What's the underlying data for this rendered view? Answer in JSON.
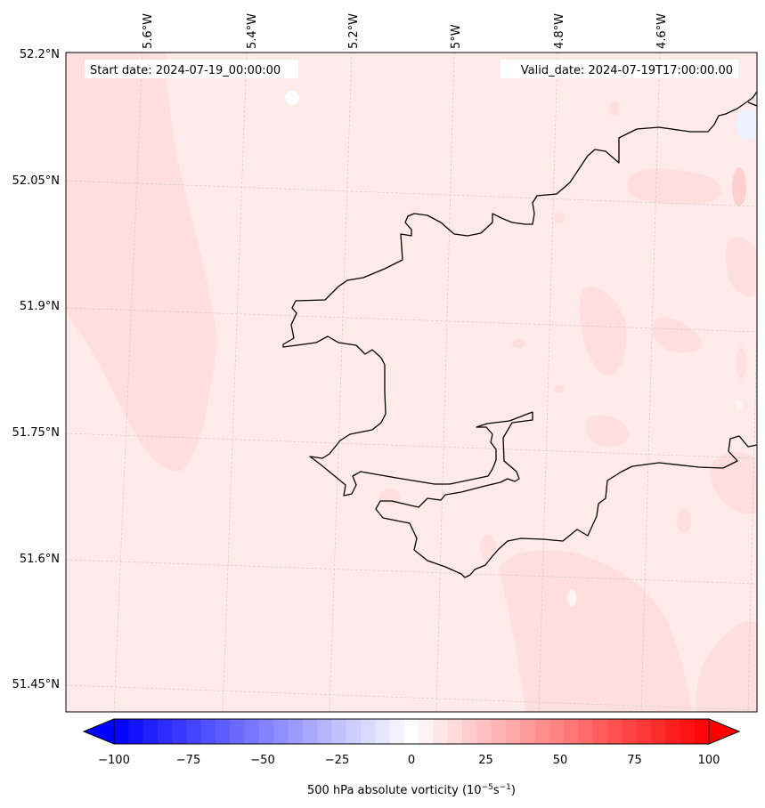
{
  "map": {
    "start_label": "Start date: 2024-07-19_00:00:00",
    "valid_label": "Valid_date: 2024-07-19T17:00:00.00",
    "lon_ticks": [
      "5.6°W",
      "5.4°W",
      "5.2°W",
      "5°W",
      "4.8°W",
      "4.6°W"
    ],
    "lat_ticks": [
      "52.2°N",
      "52.05°N",
      "51.9°N",
      "51.75°N",
      "51.6°N",
      "51.45°N"
    ],
    "field_base_color": "#ffeaea",
    "field_patch_color": "#ffdede",
    "field_light_color": "#fff4f4",
    "coastline_color": "#000000",
    "grid_color": "#c8c8c8"
  },
  "colorbar": {
    "ticks": [
      "−100",
      "−75",
      "−50",
      "−25",
      "0",
      "25",
      "50",
      "75",
      "100"
    ],
    "label": "500 hPa absolute vorticity (10",
    "label_exp1": "−5",
    "label_mid": "s",
    "label_exp2": "−1",
    "label_end": ")",
    "vmin": -100,
    "vmax": 100,
    "levels": 41,
    "min_color": "#0000ff",
    "max_color": "#ff0000"
  }
}
